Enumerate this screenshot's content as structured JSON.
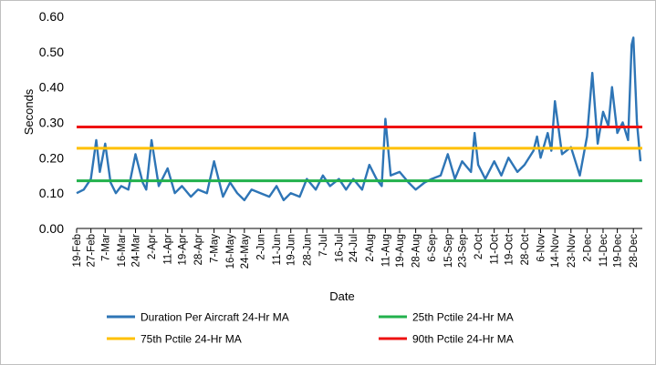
{
  "chart_data": {
    "type": "line",
    "xlabel": "Date",
    "ylabel": "Seconds",
    "ylim": [
      0,
      0.6
    ],
    "yticks": [
      "0.00",
      "0.10",
      "0.20",
      "0.30",
      "0.40",
      "0.50",
      "0.60"
    ],
    "x_tick_labels": [
      "19-Feb",
      "27-Feb",
      "7-Mar",
      "16-Mar",
      "24-Mar",
      "2-Apr",
      "11-Apr",
      "19-Apr",
      "28-Apr",
      "7-May",
      "16-May",
      "24-May",
      "2-Jun",
      "11-Jun",
      "19-Jun",
      "28-Jun",
      "7-Jul",
      "16-Jul",
      "24-Jul",
      "2-Aug",
      "11-Aug",
      "19-Aug",
      "28-Aug",
      "6-Sep",
      "15-Sep",
      "23-Sep",
      "2-Oct",
      "11-Oct",
      "19-Oct",
      "28-Oct",
      "6-Nov",
      "14-Nov",
      "23-Nov",
      "2-Dec",
      "11-Dec",
      "19-Dec",
      "28-Dec"
    ],
    "grid": false,
    "legend_position": "bottom",
    "series": [
      {
        "name": "Duration Per Aircraft 24-Hr MA",
        "color": "#2e75b6",
        "x": [
          "19-Feb",
          "23-Feb",
          "27-Feb",
          "2-Mar",
          "4-Mar",
          "7-Mar",
          "10-Mar",
          "13-Mar",
          "16-Mar",
          "20-Mar",
          "24-Mar",
          "28-Mar",
          "30-Mar",
          "2-Apr",
          "6-Apr",
          "11-Apr",
          "15-Apr",
          "19-Apr",
          "24-Apr",
          "28-Apr",
          "3-May",
          "7-May",
          "12-May",
          "16-May",
          "20-May",
          "24-May",
          "28-May",
          "2-Jun",
          "7-Jun",
          "11-Jun",
          "15-Jun",
          "19-Jun",
          "24-Jun",
          "28-Jun",
          "3-Jul",
          "7-Jul",
          "11-Jul",
          "16-Jul",
          "20-Jul",
          "24-Jul",
          "29-Jul",
          "2-Aug",
          "6-Aug",
          "9-Aug",
          "11-Aug",
          "14-Aug",
          "19-Aug",
          "24-Aug",
          "28-Aug",
          "2-Sep",
          "6-Sep",
          "11-Sep",
          "15-Sep",
          "19-Sep",
          "23-Sep",
          "28-Sep",
          "30-Sep",
          "2-Oct",
          "6-Oct",
          "11-Oct",
          "15-Oct",
          "19-Oct",
          "24-Oct",
          "28-Oct",
          "2-Nov",
          "4-Nov",
          "6-Nov",
          "10-Nov",
          "12-Nov",
          "14-Nov",
          "18-Nov",
          "23-Nov",
          "28-Nov",
          "2-Dec",
          "5-Dec",
          "8-Dec",
          "11-Dec",
          "14-Dec",
          "16-Dec",
          "19-Dec",
          "22-Dec",
          "25-Dec",
          "27-Dec",
          "28-Dec",
          "30-Dec",
          "1-Jan"
        ],
        "values": [
          0.1,
          0.11,
          0.14,
          0.25,
          0.16,
          0.24,
          0.13,
          0.1,
          0.12,
          0.11,
          0.21,
          0.13,
          0.11,
          0.25,
          0.12,
          0.17,
          0.1,
          0.12,
          0.09,
          0.11,
          0.1,
          0.19,
          0.09,
          0.13,
          0.1,
          0.08,
          0.11,
          0.1,
          0.09,
          0.12,
          0.08,
          0.1,
          0.09,
          0.14,
          0.11,
          0.15,
          0.12,
          0.14,
          0.11,
          0.14,
          0.11,
          0.18,
          0.14,
          0.12,
          0.31,
          0.15,
          0.16,
          0.13,
          0.11,
          0.13,
          0.14,
          0.15,
          0.21,
          0.14,
          0.19,
          0.16,
          0.27,
          0.18,
          0.14,
          0.19,
          0.15,
          0.2,
          0.16,
          0.18,
          0.22,
          0.26,
          0.2,
          0.27,
          0.22,
          0.36,
          0.21,
          0.23,
          0.15,
          0.26,
          0.44,
          0.24,
          0.33,
          0.29,
          0.4,
          0.27,
          0.3,
          0.25,
          0.52,
          0.54,
          0.3,
          0.19
        ]
      },
      {
        "name": "25th Pctile 24-Hr MA",
        "color": "#22b14c",
        "constant": 0.135
      },
      {
        "name": "75th Pctile 24-Hr MA",
        "color": "#ffc000",
        "constant": 0.227
      },
      {
        "name": "90th Pctile 24-Hr MA",
        "color": "#ee1111",
        "constant": 0.287
      }
    ]
  }
}
